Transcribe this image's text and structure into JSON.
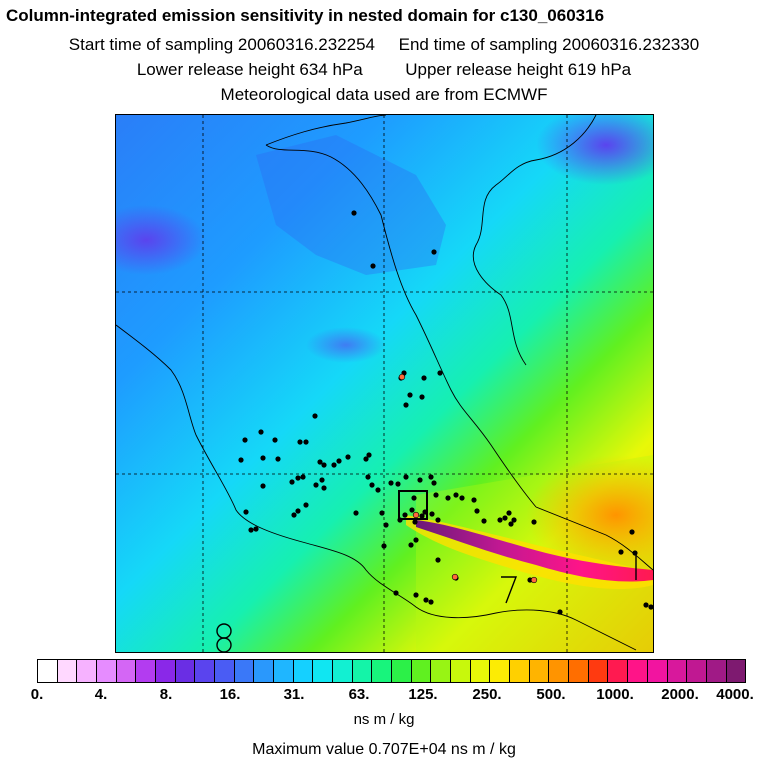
{
  "header": {
    "title": "Column-integrated emission sensitivity in nested domain for c130_060316",
    "start": "Start time of sampling 20060316.232254",
    "end": "End time of sampling 20060316.232330",
    "lower": "Lower release height  634 hPa",
    "upper": "Upper release height  619 hPa",
    "met": "Meteorological data used are from ECMWF"
  },
  "map": {
    "region": "Central Mexico",
    "grid": "dashed lat/lon lines",
    "contour_labels": [
      "7",
      "8",
      "1"
    ]
  },
  "colorbar": {
    "ticks": [
      "0.",
      "4.",
      "8.",
      "16.",
      "31.",
      "63.",
      "125.",
      "250.",
      "500.",
      "1000.",
      "2000.",
      "4000."
    ],
    "colors": [
      "#ffffff",
      "#ffd8ff",
      "#f6b2ff",
      "#e68cff",
      "#d466f5",
      "#b33cf0",
      "#8a28e8",
      "#6a2ee4",
      "#5a44ee",
      "#4a5cf4",
      "#3a78f8",
      "#2a98fc",
      "#1fb6ff",
      "#15d0ff",
      "#10e6f2",
      "#12f0d2",
      "#14f4a8",
      "#18f47c",
      "#2cf048",
      "#60f020",
      "#98f414",
      "#c8f80c",
      "#e8f808",
      "#fcec04",
      "#ffd000",
      "#ffb400",
      "#ff9400",
      "#ff6e00",
      "#ff3a10",
      "#ff1a50",
      "#ff1488",
      "#f214a0",
      "#d8189c",
      "#c01892",
      "#a01a86",
      "#7e1a70"
    ],
    "units": "ns m / kg",
    "max_value": "Maximum value  0.707E+04 ns m / kg"
  }
}
